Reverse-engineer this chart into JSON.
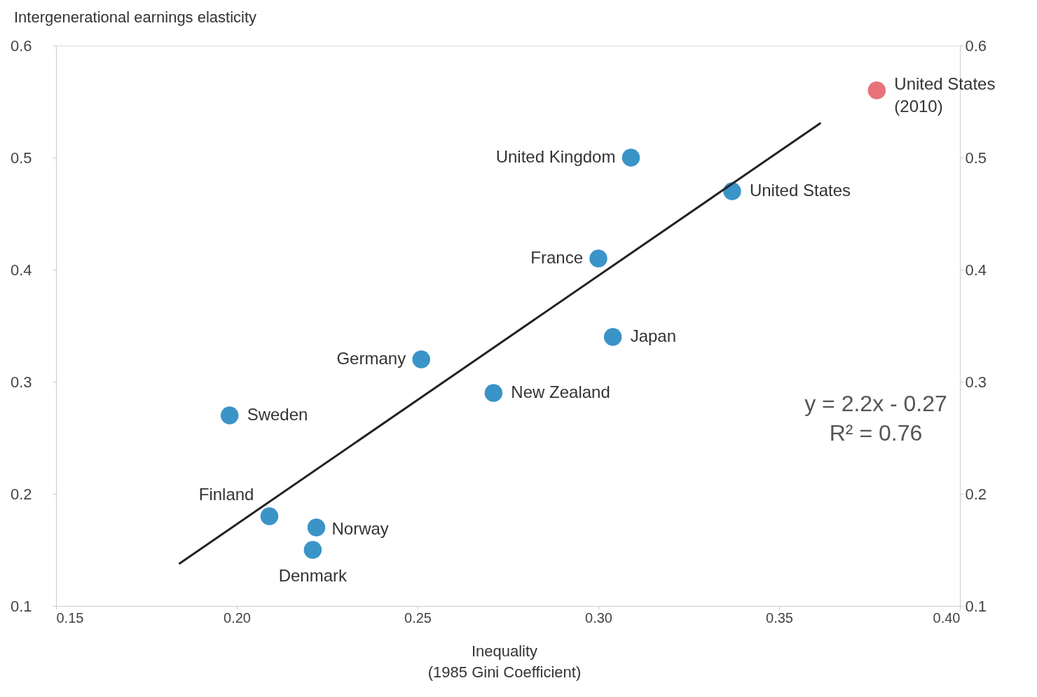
{
  "chart_data": {
    "type": "scatter",
    "ylabel": "Intergenerational earnings elasticity",
    "xlabel": "Inequality\n(1985 Gini Coefficient)",
    "xlim": [
      0.15,
      0.4
    ],
    "xticks": [
      {
        "value": 0.15,
        "label": "0.15"
      },
      {
        "value": 0.2,
        "label": "0.20"
      },
      {
        "value": 0.25,
        "label": "0.25"
      },
      {
        "value": 0.3,
        "label": "0.30"
      },
      {
        "value": 0.35,
        "label": "0.35"
      },
      {
        "value": 0.4,
        "label": "0.40"
      }
    ],
    "ylim": [
      0.1,
      0.6
    ],
    "yticks": [
      0.1,
      0.2,
      0.3,
      0.4,
      0.5,
      0.6
    ],
    "y2lim": [
      0.1,
      0.6
    ],
    "y2ticks": [
      0.1,
      0.2,
      0.3,
      0.4,
      0.5,
      0.6
    ],
    "grid": false,
    "series": [
      {
        "marker": "circle",
        "x": [
          0.377,
          0.309,
          0.337,
          0.3,
          0.304,
          0.251,
          0.271,
          0.198,
          0.209,
          0.222,
          0.221
        ],
        "values": [
          0.56,
          0.5,
          0.47,
          0.41,
          0.34,
          0.32,
          0.29,
          0.27,
          0.18,
          0.17,
          0.15
        ],
        "colors": [
          "#e8727a",
          "#3a94c8",
          "#3a94c8",
          "#3a94c8",
          "#3a94c8",
          "#3a94c8",
          "#3a94c8",
          "#3a94c8",
          "#3a94c8",
          "#3a94c8",
          "#3a94c8"
        ]
      },
      {
        "type": "line",
        "x": [
          0.184,
          0.3615
        ],
        "values": [
          0.1375,
          0.531
        ],
        "color": "#222222",
        "line_style": "solid"
      }
    ],
    "annotations": [
      {
        "text": "United States\n(2010)",
        "x": 0.377,
        "y": 0.56
      },
      {
        "text": "United Kingdom",
        "x": 0.309,
        "y": 0.5
      },
      {
        "text": "United States",
        "x": 0.337,
        "y": 0.47
      },
      {
        "text": "France",
        "x": 0.3,
        "y": 0.41
      },
      {
        "text": "Japan",
        "x": 0.304,
        "y": 0.34
      },
      {
        "text": "Germany",
        "x": 0.251,
        "y": 0.32
      },
      {
        "text": "New Zealand",
        "x": 0.271,
        "y": 0.29
      },
      {
        "text": "Sweden",
        "x": 0.198,
        "y": 0.27
      },
      {
        "text": "Finland",
        "x": 0.209,
        "y": 0.18
      },
      {
        "text": "Norway",
        "x": 0.222,
        "y": 0.17
      },
      {
        "text": "Denmark",
        "x": 0.221,
        "y": 0.15
      },
      "y = 2.2x - 0.27",
      "R² = 0.76"
    ]
  }
}
